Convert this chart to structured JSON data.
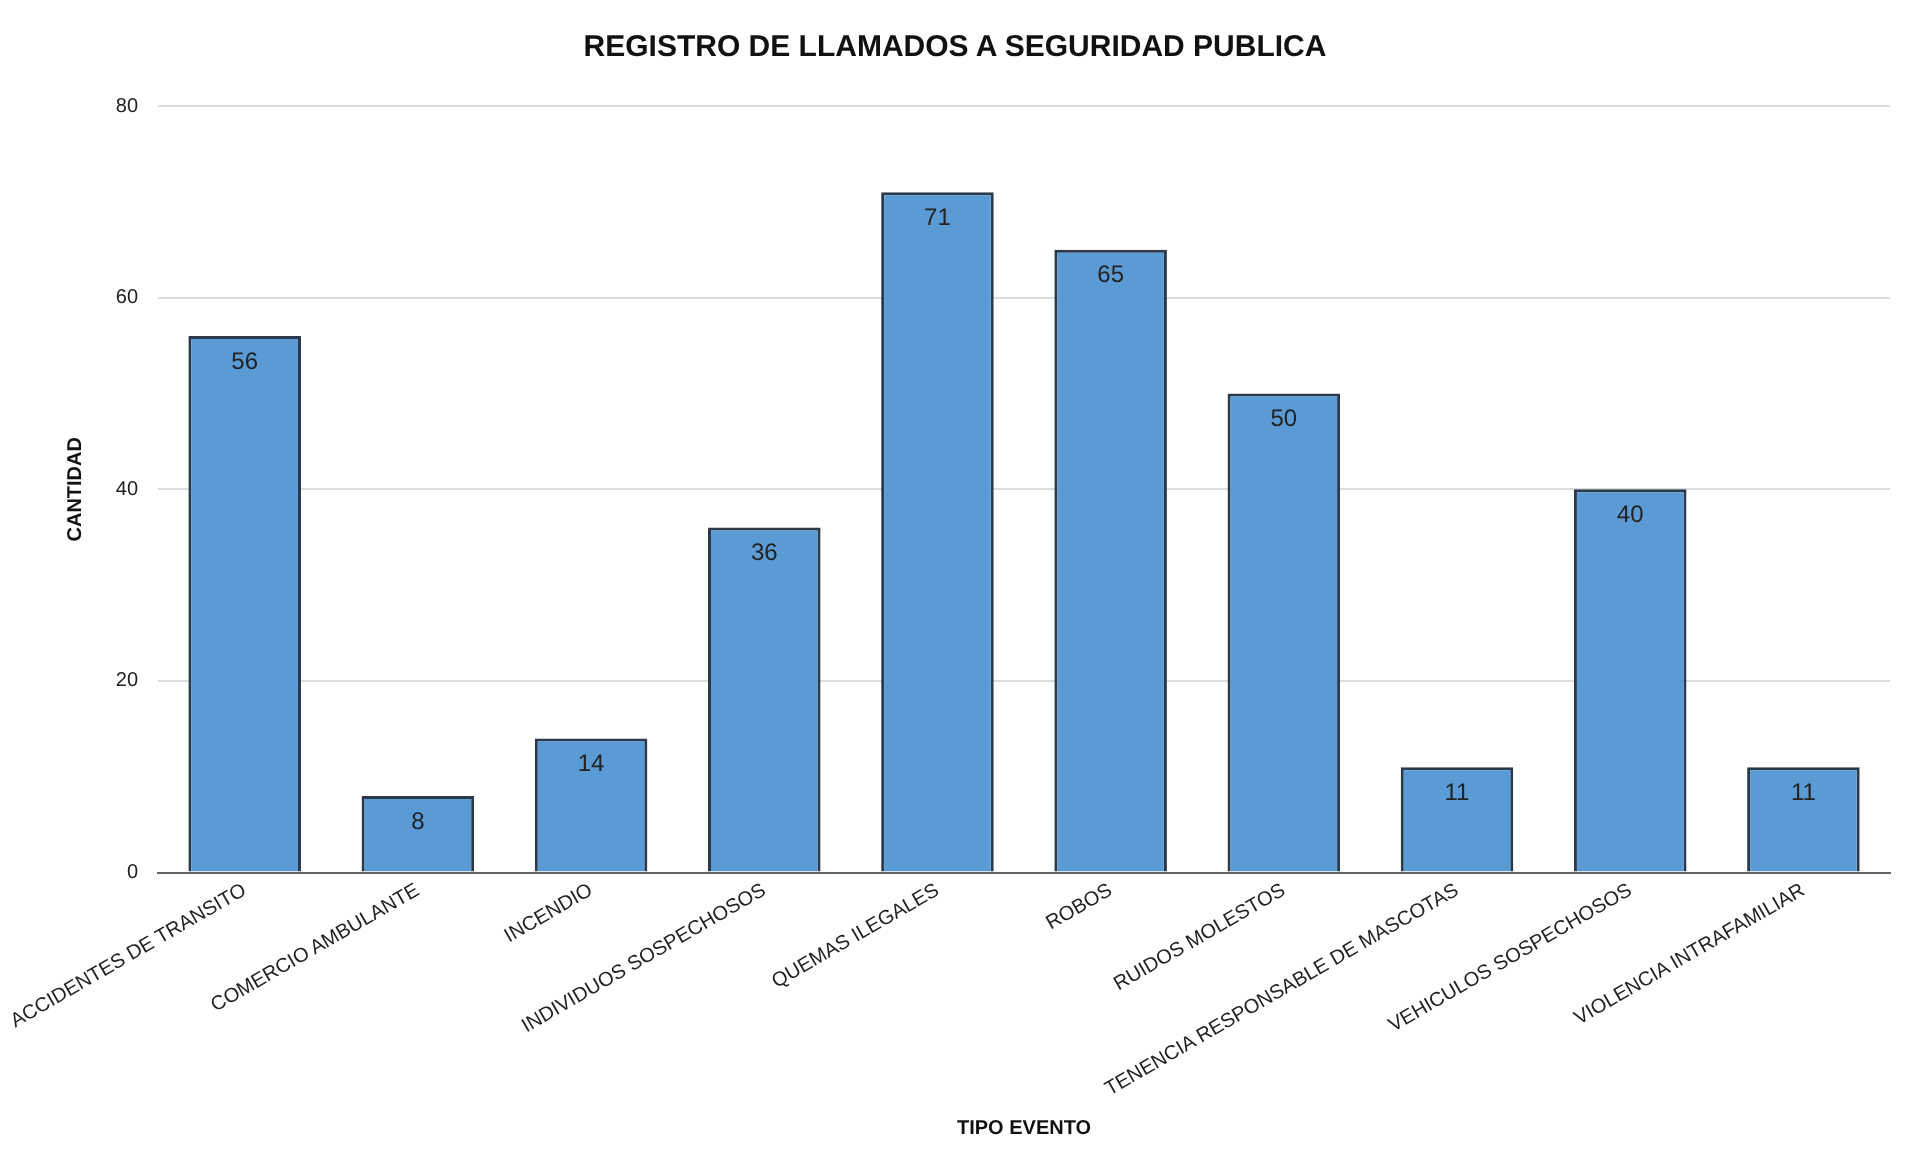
{
  "chart_data": {
    "type": "bar",
    "title": "REGISTRO DE LLAMADOS A SEGURIDAD PUBLICA",
    "xlabel": "TIPO EVENTO",
    "ylabel": "CANTIDAD",
    "categories": [
      "ACCIDENTES DE TRANSITO",
      "COMERCIO AMBULANTE",
      "INCENDIO",
      "INDIVIDUOS SOSPECHOSOS",
      "QUEMAS ILEGALES",
      "ROBOS",
      "RUIDOS MOLESTOS",
      "TENENCIA RESPONSABLE DE MASCOTAS",
      "VEHICULOS SOSPECHOSOS",
      "VIOLENCIA INTRAFAMILIAR"
    ],
    "values": [
      56,
      8,
      14,
      36,
      71,
      65,
      50,
      11,
      40,
      11
    ],
    "color": "#5b9bd5",
    "ylim": [
      0,
      80
    ],
    "yticks": [
      0,
      20,
      40,
      60,
      80
    ],
    "grid": "y",
    "data_labels": true,
    "legend": false
  }
}
